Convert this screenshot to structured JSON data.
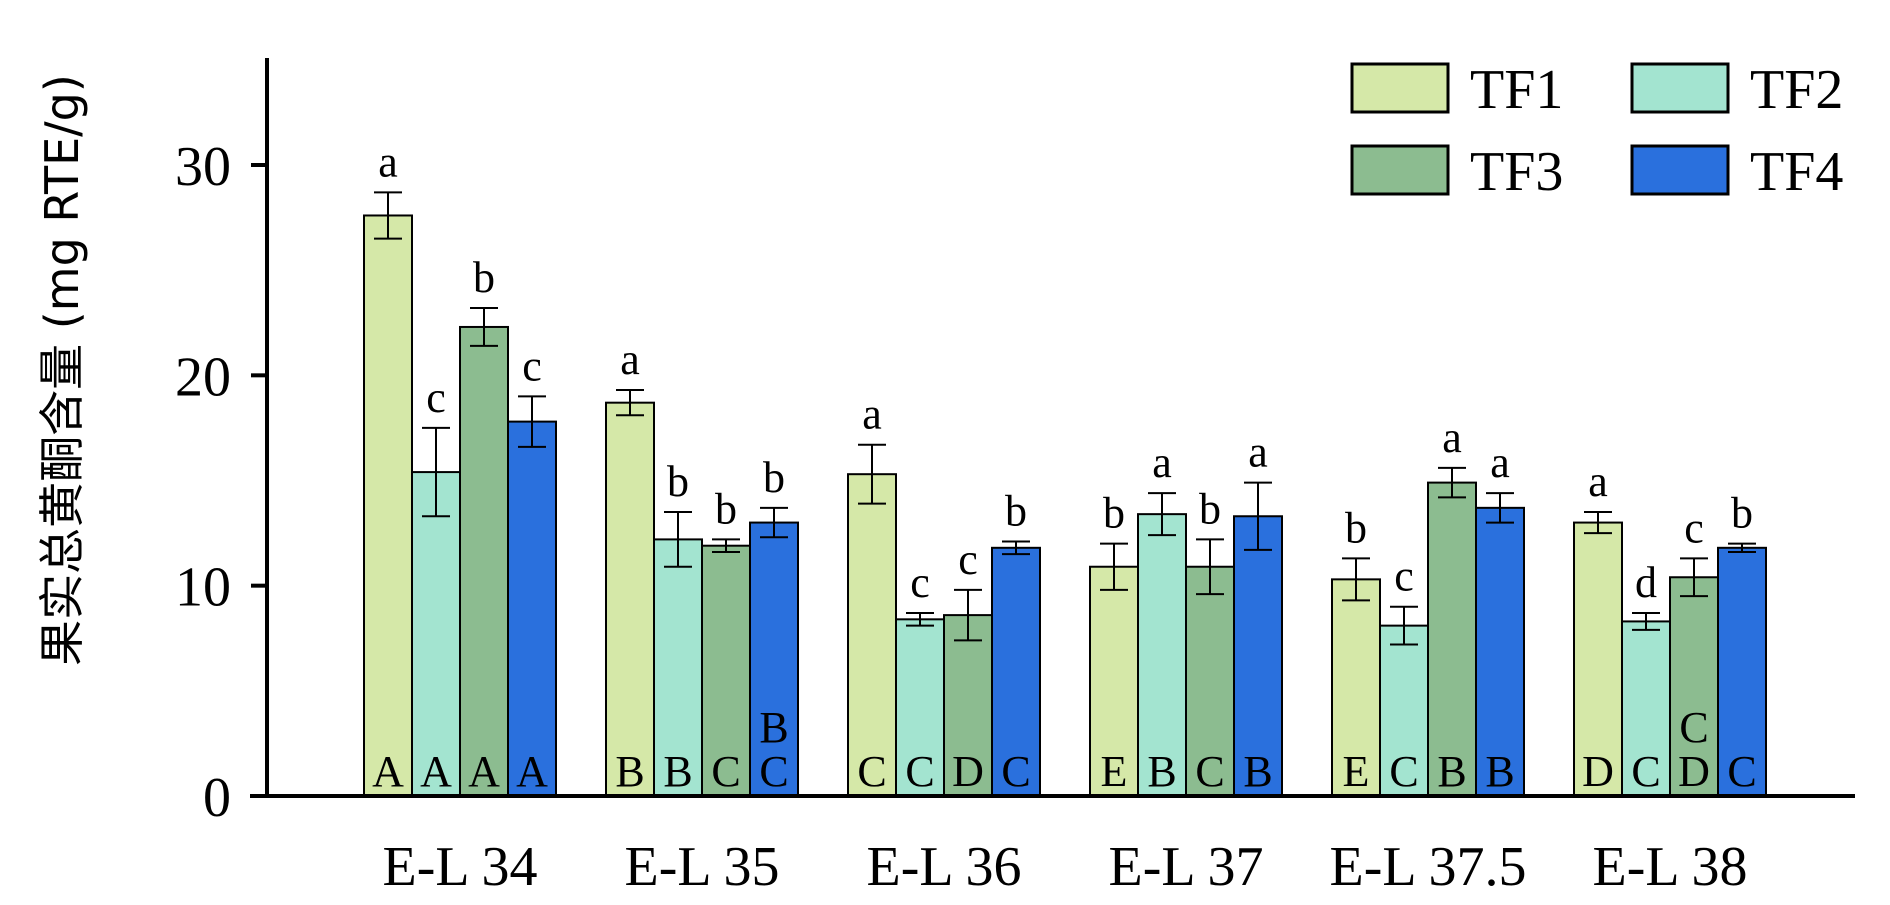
{
  "chart_data": {
    "type": "bar",
    "ylabel": "果实总黄酮含量 (mg RTE/g)",
    "xlabel": "",
    "ylim": [
      0,
      35
    ],
    "yticks": [
      0,
      10,
      20,
      30
    ],
    "categories": [
      "E-L 34",
      "E-L 35",
      "E-L 36",
      "E-L 37",
      "E-L 37.5",
      "E-L 38"
    ],
    "legend_position": "top-right",
    "series": [
      {
        "name": "TF1",
        "color": "#d5e8a8",
        "values": [
          27.6,
          18.7,
          15.3,
          10.9,
          10.3,
          13.0
        ],
        "errors": [
          1.1,
          0.6,
          1.4,
          1.1,
          1.0,
          0.5
        ],
        "letters": [
          "a",
          "a",
          "a",
          "b",
          "b",
          "a"
        ],
        "group_letters": [
          "A",
          "B",
          "C",
          "E",
          "E",
          "D"
        ]
      },
      {
        "name": "TF2",
        "color": "#a3e4d0",
        "values": [
          15.4,
          12.2,
          8.4,
          13.4,
          8.1,
          8.3
        ],
        "errors": [
          2.1,
          1.3,
          0.3,
          1.0,
          0.9,
          0.4
        ],
        "letters": [
          "c",
          "b",
          "c",
          "a",
          "c",
          "d"
        ],
        "group_letters": [
          "A",
          "B",
          "C",
          "B",
          "C",
          "C"
        ]
      },
      {
        "name": "TF3",
        "color": "#8cbc90",
        "values": [
          22.3,
          11.9,
          8.6,
          10.9,
          14.9,
          10.4
        ],
        "errors": [
          0.9,
          0.3,
          1.2,
          1.3,
          0.7,
          0.9
        ],
        "letters": [
          "b",
          "b",
          "c",
          "b",
          "a",
          "c"
        ],
        "group_letters": [
          "A",
          "C",
          "D",
          "C",
          "B",
          "C D"
        ]
      },
      {
        "name": "TF4",
        "color": "#2a70dd",
        "values": [
          17.8,
          13.0,
          11.8,
          13.3,
          13.7,
          11.8
        ],
        "errors": [
          1.2,
          0.7,
          0.3,
          1.6,
          0.7,
          0.2
        ],
        "letters": [
          "c",
          "b",
          "b",
          "a",
          "a",
          "b"
        ],
        "group_letters": [
          "A",
          "B C",
          "C",
          "B",
          "B",
          "C"
        ]
      }
    ]
  }
}
